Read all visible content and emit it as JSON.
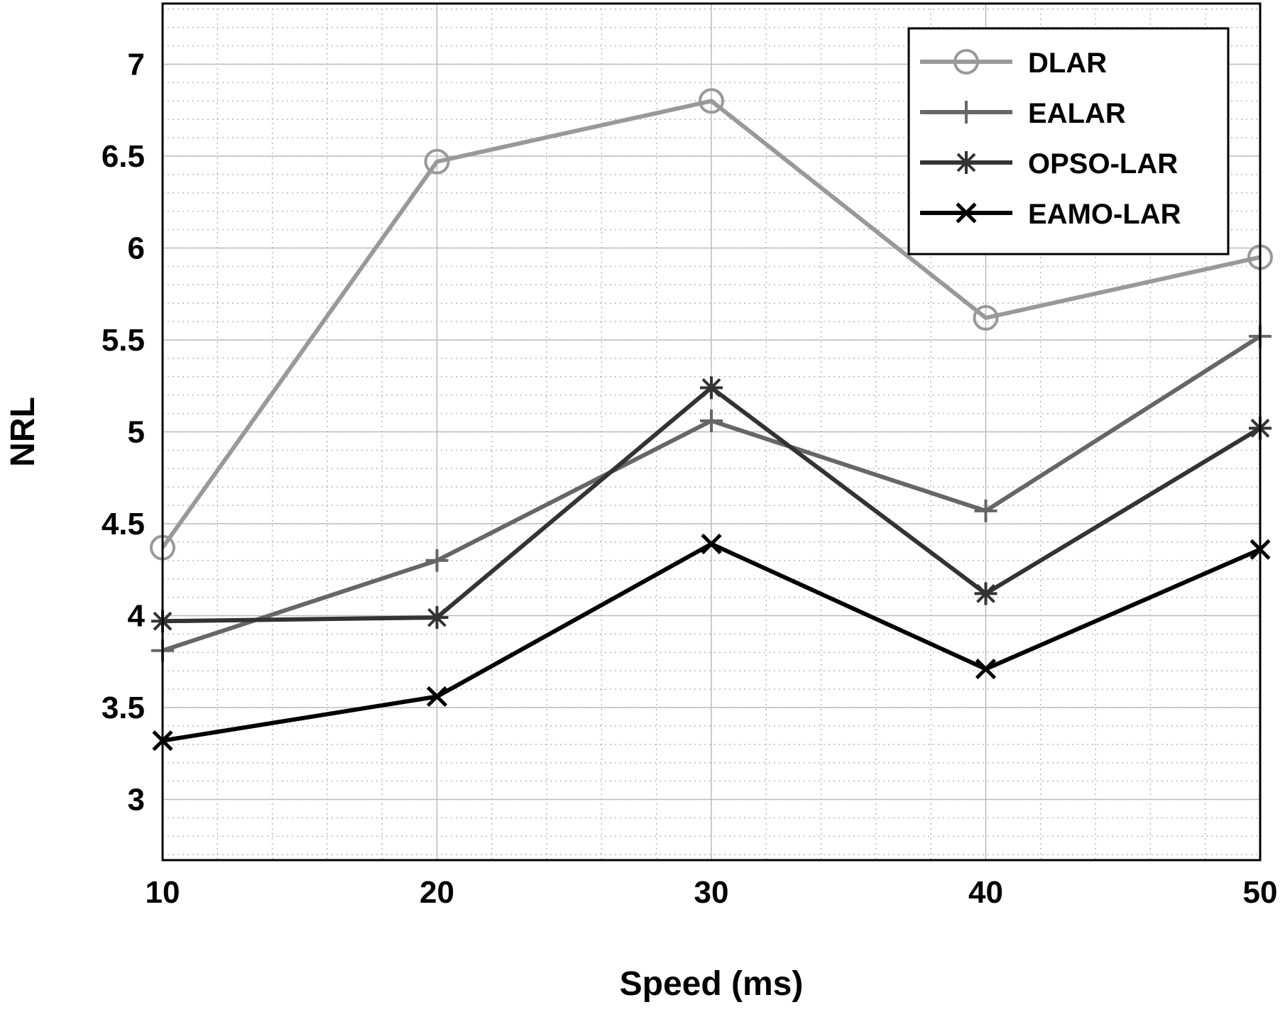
{
  "chart_data": {
    "type": "line",
    "title": "",
    "xlabel": "Speed (ms)",
    "ylabel": "NRL",
    "x": [
      10,
      20,
      30,
      40,
      50
    ],
    "xlim": [
      10,
      50
    ],
    "ylim": [
      2.67,
      7.33
    ],
    "xticks": [
      "10",
      "20",
      "30",
      "40",
      "50"
    ],
    "yticks": [
      "3",
      "3.5",
      "4",
      "4.5",
      "5",
      "5.5",
      "6",
      "6.5",
      "7"
    ],
    "grid": true,
    "legend_position": "top-right",
    "series": [
      {
        "name": "DLAR",
        "marker": "circle",
        "color": "#999999",
        "values": [
          4.37,
          6.47,
          6.8,
          5.62,
          5.95
        ]
      },
      {
        "name": "EALAR",
        "marker": "plus",
        "color": "#666666",
        "values": [
          3.81,
          4.3,
          5.06,
          4.57,
          5.52
        ]
      },
      {
        "name": "OPSO-LAR",
        "marker": "asterisk",
        "color": "#333333",
        "values": [
          3.97,
          3.99,
          5.24,
          4.12,
          5.02
        ]
      },
      {
        "name": "EAMO-LAR",
        "marker": "x",
        "color": "#000000",
        "values": [
          3.32,
          3.56,
          4.39,
          3.71,
          4.36
        ]
      }
    ]
  }
}
